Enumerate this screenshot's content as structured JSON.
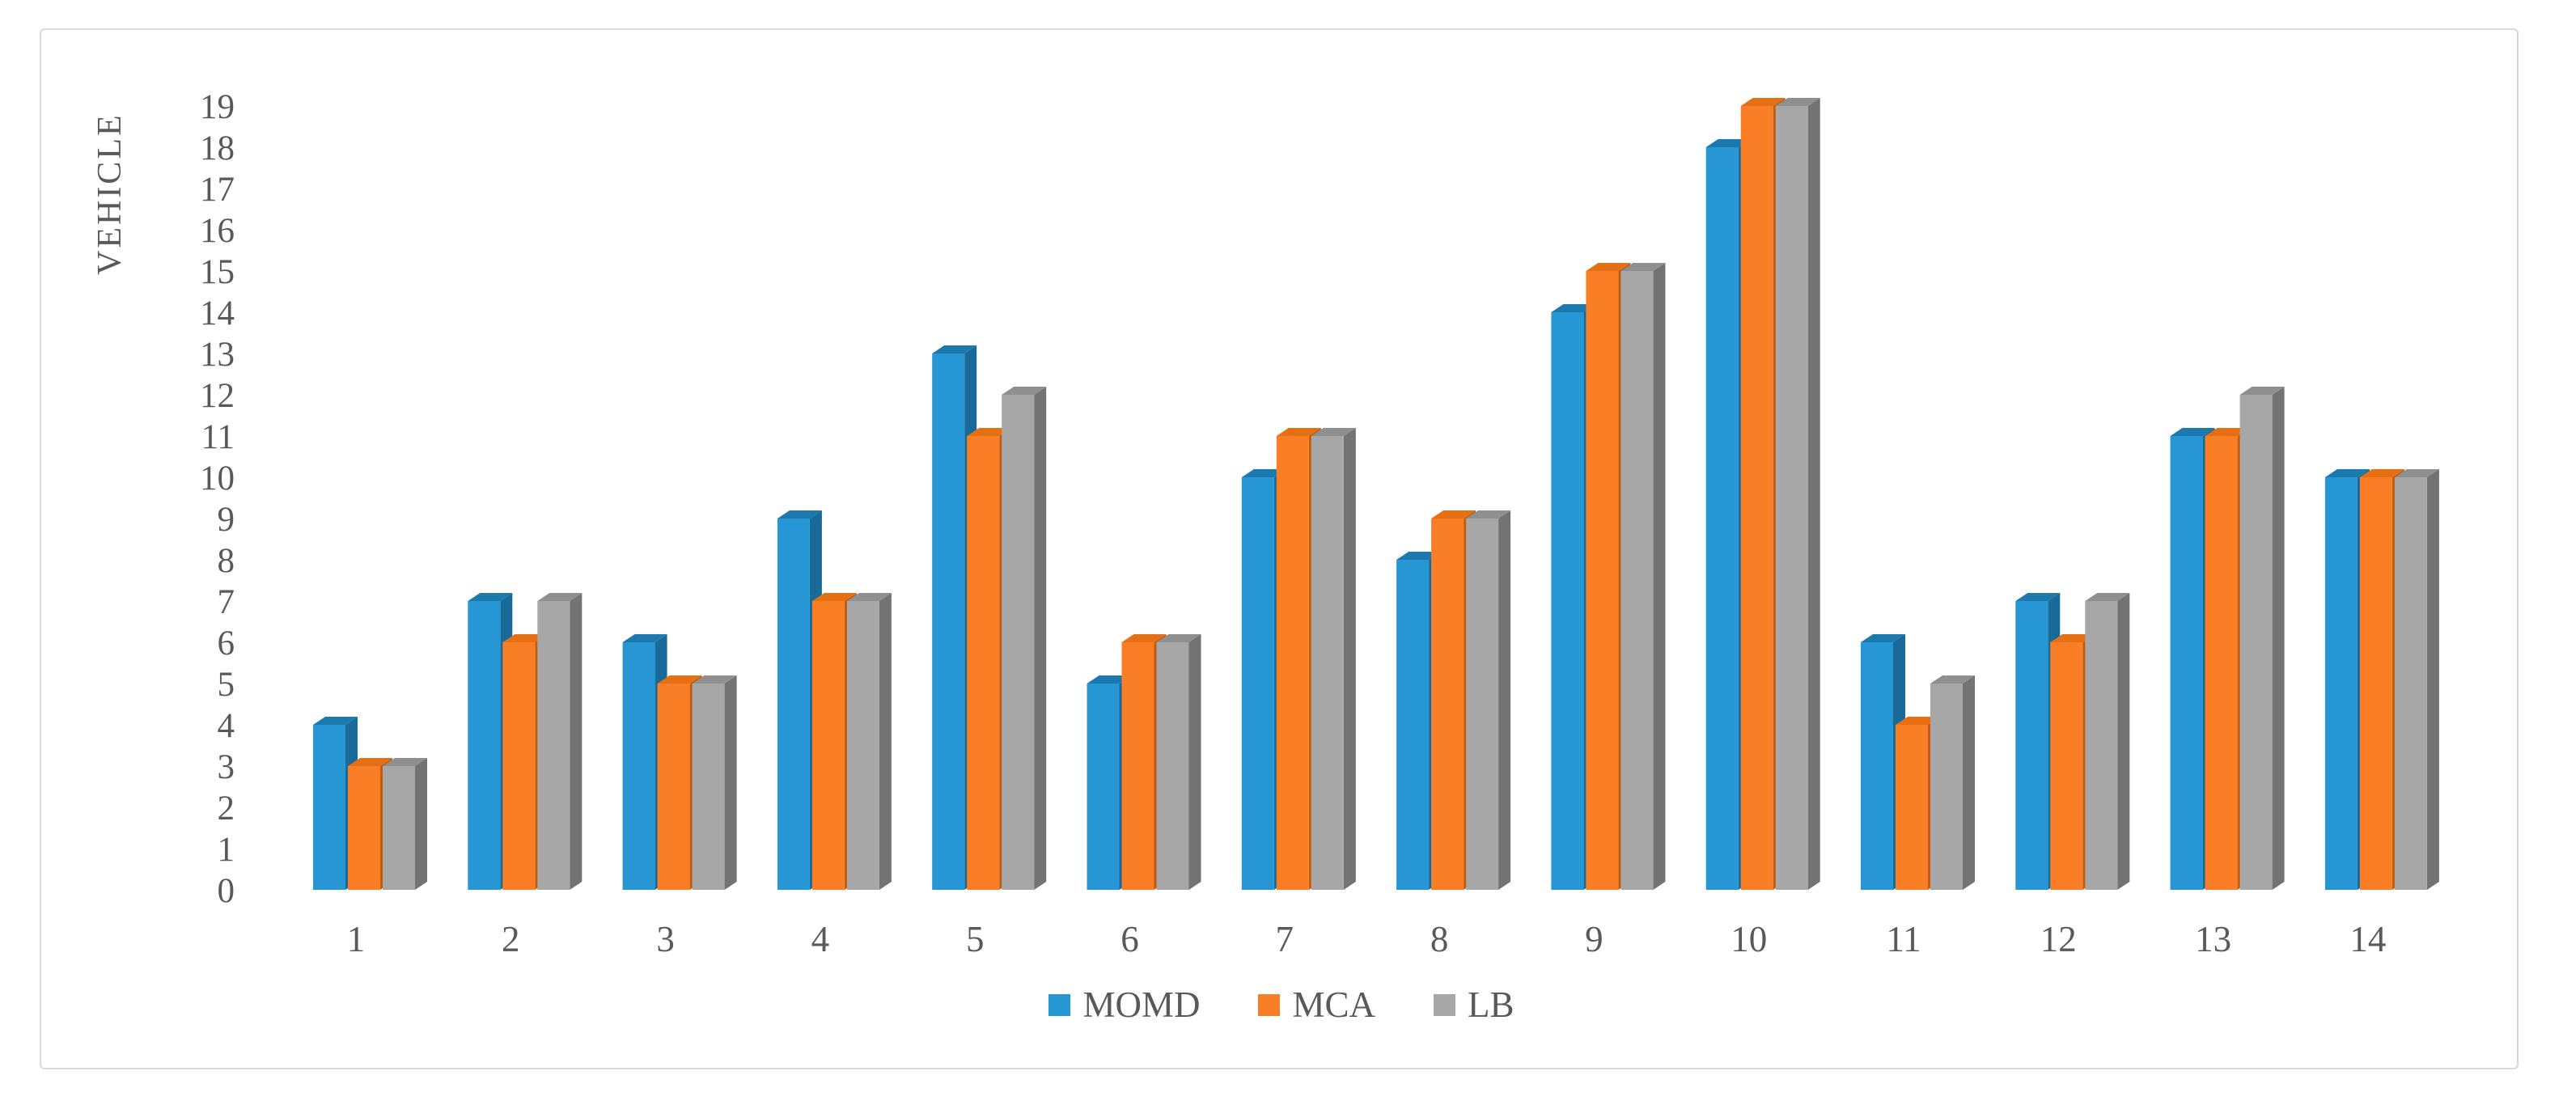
{
  "figure": {
    "kind": "3d-clustered-column-chart",
    "background": "#ffffff",
    "border_color": "#d9d9d9"
  },
  "chart_data": {
    "type": "bar",
    "style": "3d-clustered-column",
    "title": "",
    "xlabel": "",
    "ylabel": "VEHICLE",
    "categories": [
      "1",
      "2",
      "3",
      "4",
      "5",
      "6",
      "7",
      "8",
      "9",
      "10",
      "11",
      "12",
      "13",
      "14"
    ],
    "series": [
      {
        "name": "MOMD",
        "color": "#2697d4",
        "top_color": "#1b79ad",
        "side_color": "#1a6a99",
        "values": [
          4,
          7,
          6,
          9,
          13,
          5,
          10,
          8,
          14,
          18,
          6,
          7,
          11,
          10
        ]
      },
      {
        "name": "MCA",
        "color": "#fa7e26",
        "top_color": "#e56f12",
        "side_color": "#bf5c10",
        "values": [
          3,
          6,
          5,
          7,
          11,
          6,
          11,
          9,
          15,
          19,
          4,
          6,
          11,
          10
        ]
      },
      {
        "name": "LB",
        "color": "#a7a7a7",
        "top_color": "#8f8f8f",
        "side_color": "#737373",
        "values": [
          3,
          7,
          5,
          7,
          12,
          6,
          11,
          9,
          15,
          19,
          5,
          7,
          12,
          10
        ]
      }
    ],
    "ylim": [
      0,
      19
    ],
    "ytick_step": 1,
    "yticks": [
      "0",
      "1",
      "2",
      "3",
      "4",
      "5",
      "6",
      "7",
      "8",
      "9",
      "10",
      "11",
      "12",
      "13",
      "14",
      "15",
      "16",
      "17",
      "18",
      "19"
    ],
    "gridlines": false,
    "legend_position": "bottom",
    "axis_text_color": "#595959"
  }
}
